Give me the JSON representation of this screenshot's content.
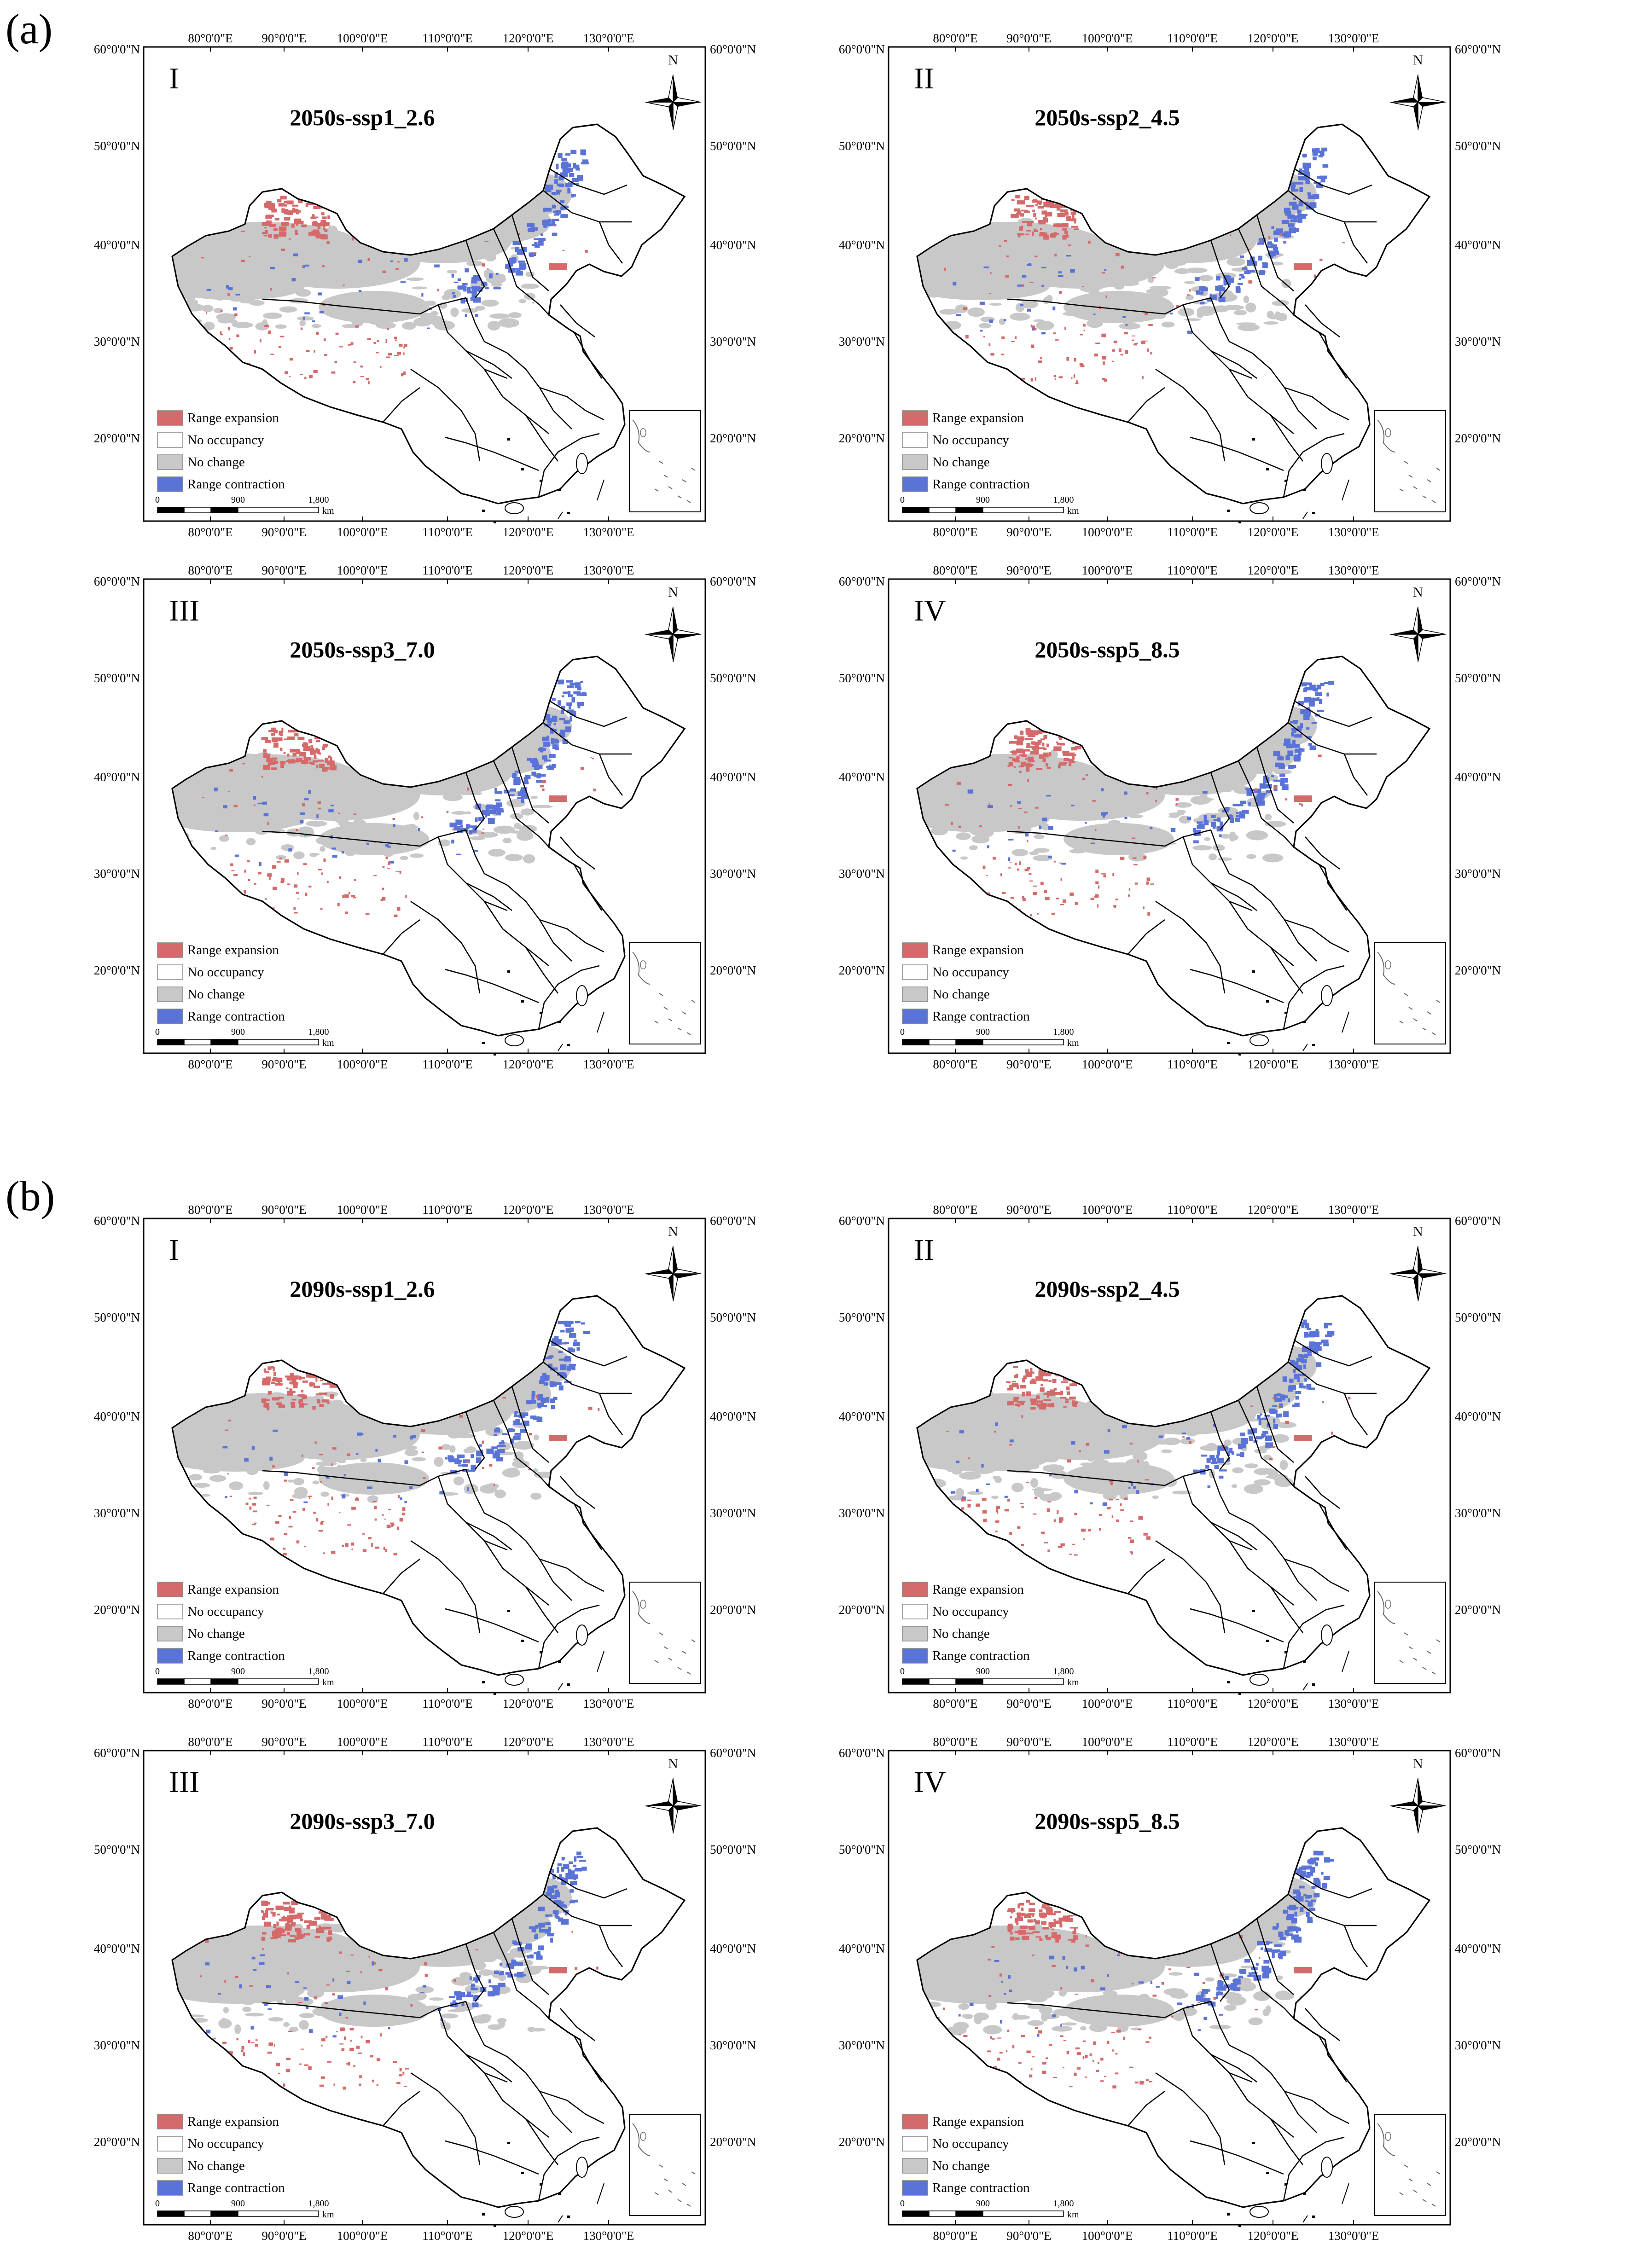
{
  "sections": [
    {
      "label": "(a)",
      "panels": [
        {
          "numeral": "I",
          "title": "2050s-ssp1_2.6"
        },
        {
          "numeral": "II",
          "title": "2050s-ssp2_4.5"
        },
        {
          "numeral": "III",
          "title": "2050s-ssp3_7.0"
        },
        {
          "numeral": "IV",
          "title": "2050s-ssp5_8.5"
        }
      ]
    },
    {
      "label": "(b)",
      "panels": [
        {
          "numeral": "I",
          "title": "2090s-ssp1_2.6"
        },
        {
          "numeral": "II",
          "title": "2090s-ssp2_4.5"
        },
        {
          "numeral": "III",
          "title": "2090s-ssp3_7.0"
        },
        {
          "numeral": "IV",
          "title": "2090s-ssp5_8.5"
        }
      ]
    }
  ],
  "lon_labels": [
    "80°0'0\"E",
    "90°0'0\"E",
    "100°0'0\"E",
    "110°0'0\"E",
    "120°0'0\"E",
    "130°0'0\"E"
  ],
  "lat_labels": [
    "60°0'0\"N",
    "50°0'0\"N",
    "40°0'0\"N",
    "30°0'0\"N",
    "20°0'0\"N"
  ],
  "legend": [
    {
      "label": "Range expansion",
      "color": "#d46a6a"
    },
    {
      "label": "No occupancy",
      "color": "#ffffff"
    },
    {
      "label": "No change",
      "color": "#c8c8c8"
    },
    {
      "label": "Range contraction",
      "color": "#5a73d6"
    }
  ],
  "scale_bar": {
    "ticks": [
      "0",
      "900",
      "1,800"
    ],
    "unit": "km"
  },
  "north_label": "N"
}
